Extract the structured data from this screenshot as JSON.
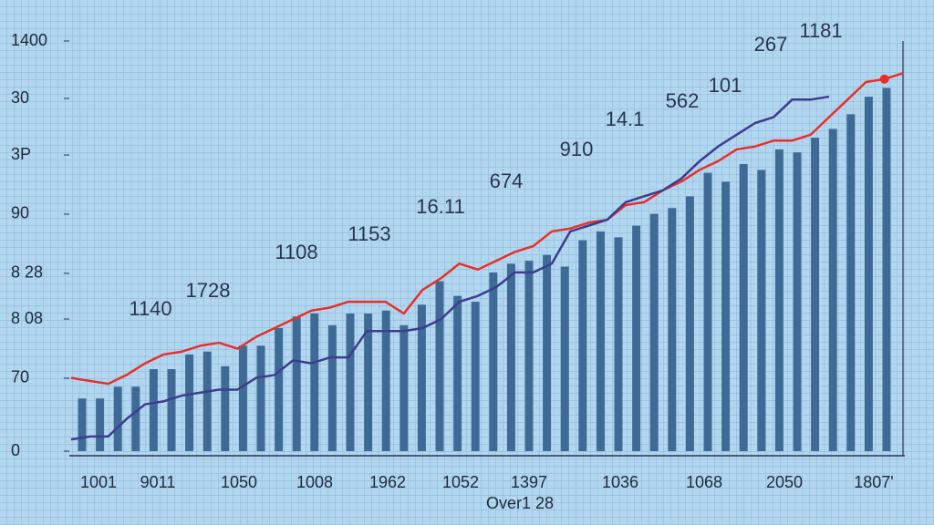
{
  "chart_data": {
    "type": "bar",
    "ylim": [
      0,
      1400
    ],
    "yticks": [
      1400,
      {
        "value": 1204,
        "label": "30"
      },
      {
        "value": 1011,
        "label": "3P"
      },
      {
        "value": 809,
        "label": "90"
      },
      {
        "value": 607,
        "label": "8 28"
      },
      {
        "value": 451,
        "label": "8 08"
      },
      {
        "value": 249,
        "label": "70"
      },
      0
    ],
    "x_labels": [
      "1001",
      "9011",
      "1050",
      "1008",
      "1962",
      "1052",
      "1397",
      "1036",
      "1068",
      "2050",
      "1807'"
    ],
    "xlabel": "Over1 28",
    "annotations": [
      "1140",
      "1728",
      "1108",
      "1153",
      "16.11",
      "674",
      "910",
      "14.1",
      "562",
      "101",
      "267",
      "1181"
    ],
    "color": "#3e6b96",
    "values": [
      180,
      180,
      220,
      220,
      280,
      280,
      330,
      340,
      290,
      360,
      360,
      420,
      460,
      470,
      430,
      470,
      470,
      480,
      430,
      500,
      580,
      530,
      510,
      610,
      640,
      650,
      670,
      630,
      720,
      750,
      730,
      770,
      810,
      830,
      870,
      950,
      920,
      980,
      960,
      1030,
      1020,
      1070,
      1100,
      1150,
      1210,
      1240
    ],
    "series": [
      {
        "name": "red",
        "color": "#e8302a",
        "values": [
          250,
          240,
          230,
          260,
          300,
          330,
          340,
          360,
          370,
          350,
          390,
          420,
          450,
          480,
          490,
          510,
          510,
          510,
          470,
          550,
          590,
          640,
          620,
          650,
          680,
          700,
          750,
          760,
          780,
          790,
          840,
          850,
          890,
          920,
          960,
          990,
          1030,
          1040,
          1060,
          1060,
          1080,
          1140,
          1200,
          1260,
          1270,
          1290
        ]
      },
      {
        "name": "purple",
        "color": "#3d3c8e",
        "values": [
          40,
          50,
          50,
          110,
          160,
          170,
          190,
          200,
          210,
          210,
          250,
          260,
          310,
          300,
          320,
          320,
          410,
          410,
          410,
          420,
          450,
          510,
          530,
          560,
          610,
          610,
          640,
          750,
          770,
          790,
          850,
          870,
          890,
          930,
          990,
          1040,
          1080,
          1120,
          1140,
          1200,
          1200,
          1210,
          null,
          null,
          null,
          null
        ]
      }
    ],
    "highlight": 44
  }
}
